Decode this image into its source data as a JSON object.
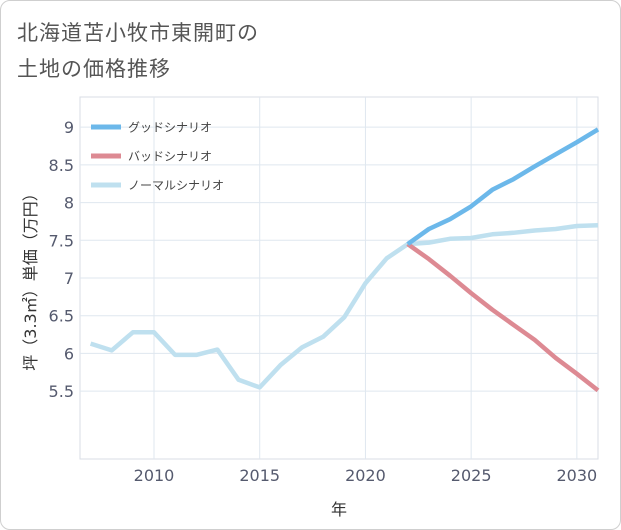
{
  "title": "北海道苫小牧市東開町の\n土地の価格推移",
  "chart_data": {
    "type": "line",
    "xlabel": "年",
    "ylabel": "坪（3.3㎡）単価（万円）",
    "xlim": [
      2006.5,
      2031
    ],
    "ylim": [
      4.6,
      9.4
    ],
    "xticks": [
      2010,
      2015,
      2020,
      2025,
      2030
    ],
    "yticks": [
      5.5,
      6,
      6.5,
      7,
      7.5,
      8,
      8.5,
      9
    ],
    "grid": true,
    "legend_position": "top-left",
    "series": [
      {
        "name": "グッドシナリオ",
        "color": "#6cb8ea",
        "x": [
          2022,
          2023,
          2024,
          2025,
          2026,
          2027,
          2028,
          2029,
          2030,
          2031
        ],
        "values": [
          7.45,
          7.65,
          7.78,
          7.95,
          8.17,
          8.31,
          8.48,
          8.64,
          8.8,
          8.97
        ]
      },
      {
        "name": "バッドシナリオ",
        "color": "#dd8a93",
        "x": [
          2022,
          2023,
          2024,
          2025,
          2026,
          2027,
          2028,
          2029,
          2030,
          2031
        ],
        "values": [
          7.45,
          7.25,
          7.03,
          6.8,
          6.58,
          6.38,
          6.18,
          5.94,
          5.73,
          5.51
        ]
      },
      {
        "name": "ノーマルシナリオ",
        "color": "#bfe0ef",
        "x": [
          2007,
          2008,
          2009,
          2010,
          2011,
          2012,
          2013,
          2014,
          2015,
          2016,
          2017,
          2018,
          2019,
          2020,
          2021,
          2022,
          2023,
          2024,
          2025,
          2026,
          2027,
          2028,
          2029,
          2030,
          2031
        ],
        "values": [
          6.13,
          6.04,
          6.28,
          6.28,
          5.98,
          5.98,
          6.05,
          5.65,
          5.55,
          5.85,
          6.08,
          6.22,
          6.48,
          6.93,
          7.26,
          7.45,
          7.47,
          7.52,
          7.53,
          7.58,
          7.6,
          7.63,
          7.65,
          7.69,
          7.7
        ]
      }
    ]
  }
}
